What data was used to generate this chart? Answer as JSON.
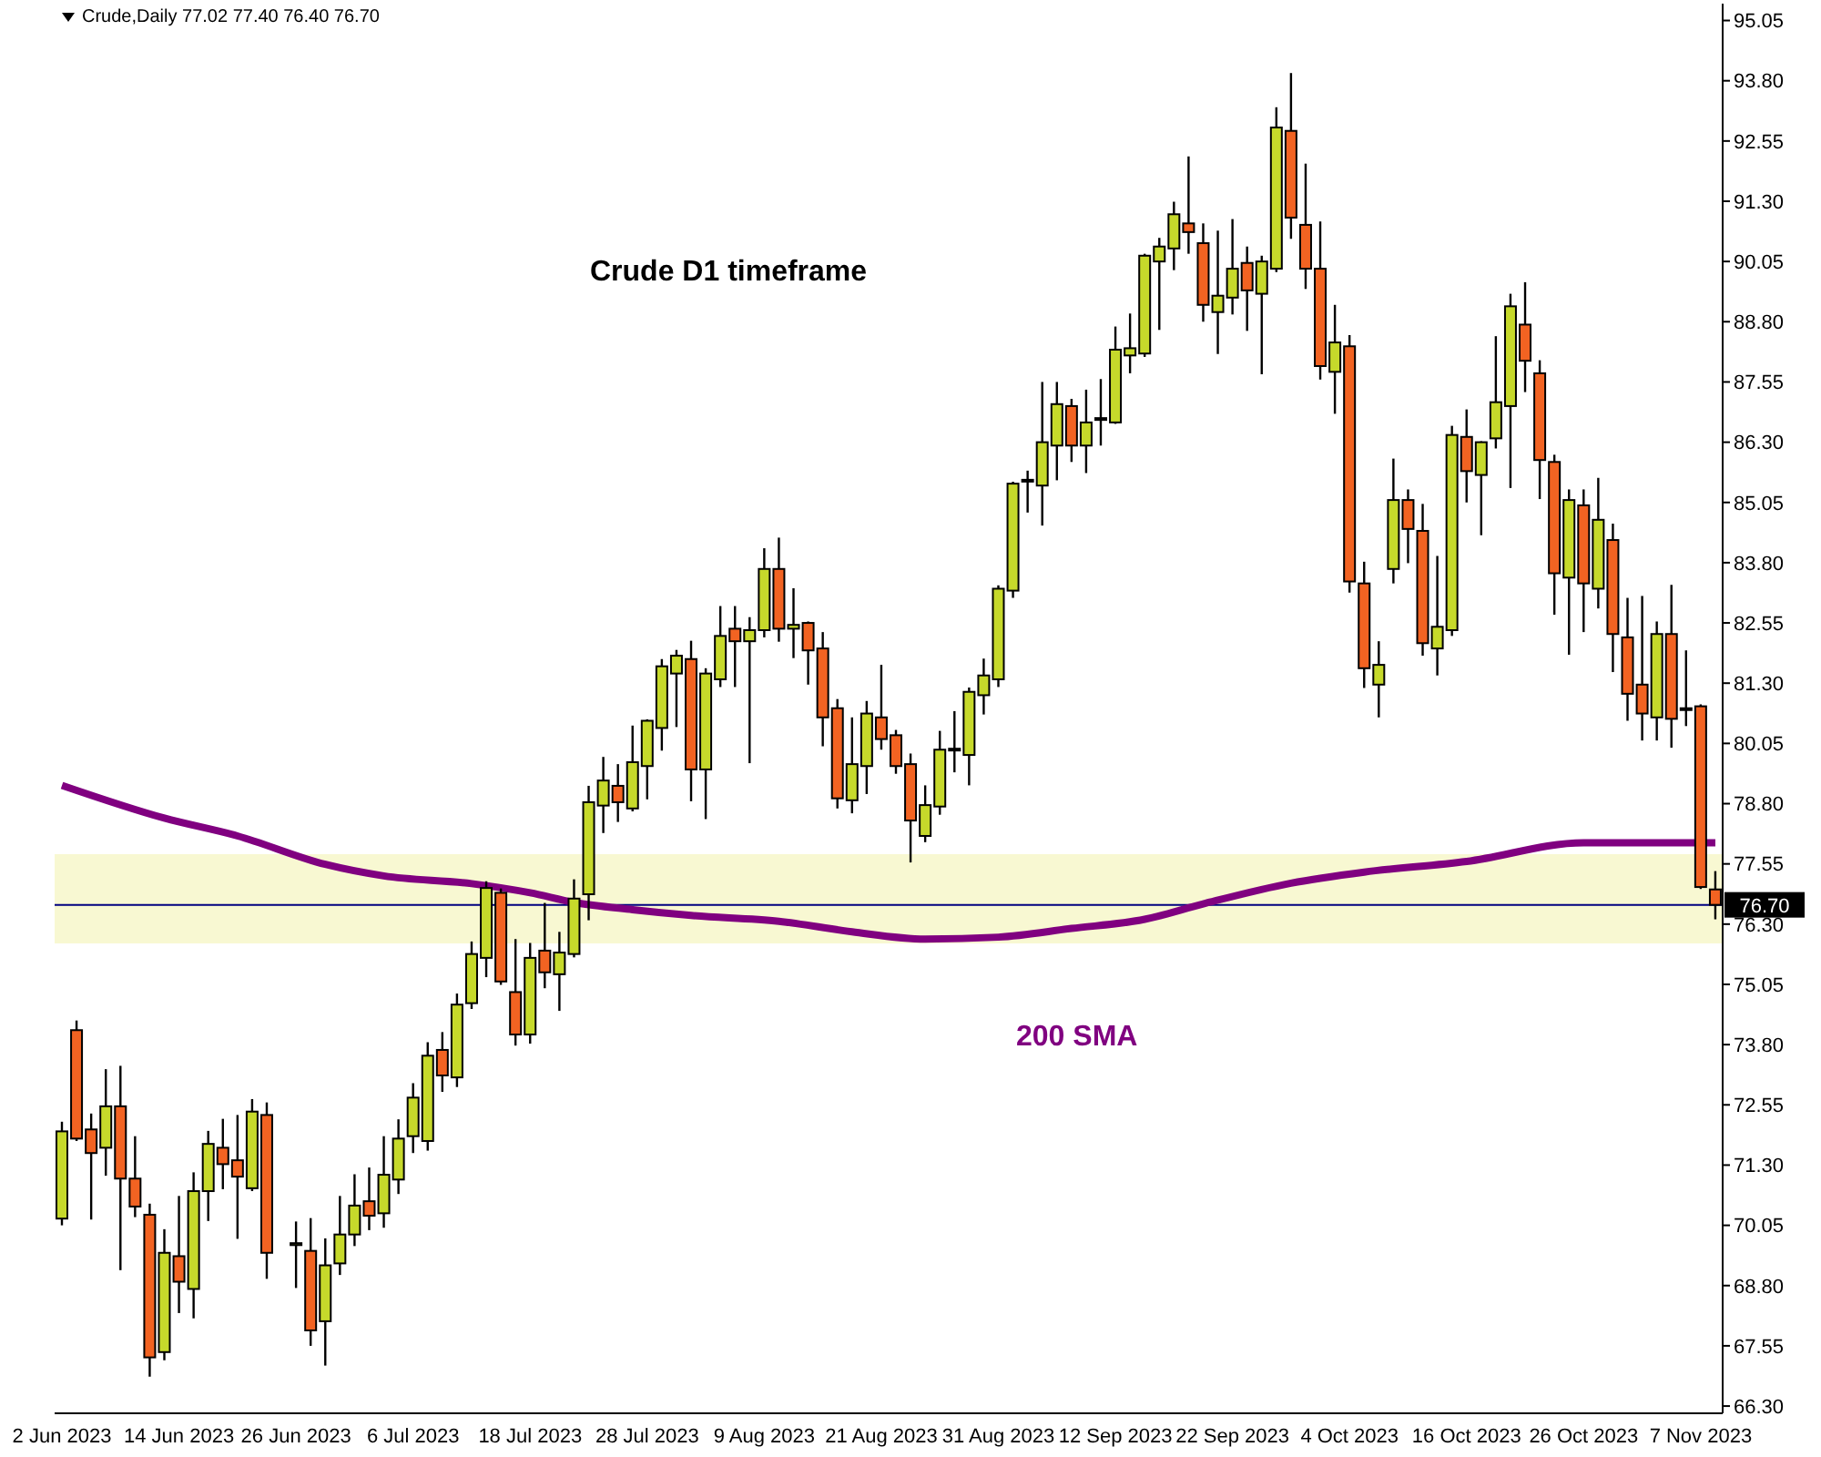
{
  "chart_data": {
    "type": "candlestick",
    "title": "Crude D1 timeframe",
    "annotations": [
      "Crude,Daily 77.02 77.40 76.40 76.70"
    ],
    "categories": [
      "2 Jun 2023",
      null,
      null,
      null,
      null,
      null,
      null,
      null,
      "14 Jun 2023",
      null,
      null,
      null,
      null,
      null,
      null,
      null,
      "26 Jun 2023",
      null,
      null,
      null,
      null,
      null,
      null,
      null,
      "6 Jul 2023",
      null,
      null,
      null,
      null,
      null,
      null,
      null,
      "18 Jul 2023",
      null,
      null,
      null,
      null,
      null,
      null,
      null,
      "28 Jul 2023",
      null,
      null,
      null,
      null,
      null,
      null,
      null,
      "9 Aug 2023",
      null,
      null,
      null,
      null,
      null,
      null,
      null,
      "21 Aug 2023",
      null,
      null,
      null,
      null,
      null,
      null,
      null,
      "31 Aug 2023",
      null,
      null,
      null,
      null,
      null,
      null,
      null,
      "12 Sep 2023",
      null,
      null,
      null,
      null,
      null,
      null,
      null,
      "22 Sep 2023",
      null,
      null,
      null,
      null,
      null,
      null,
      null,
      "4 Oct 2023",
      null,
      null,
      null,
      null,
      null,
      null,
      null,
      "16 Oct 2023",
      null,
      null,
      null,
      null,
      null,
      null,
      null,
      "26 Oct 2023",
      null,
      null,
      null,
      null,
      null,
      null,
      null,
      "7 Nov 2023",
      null
    ],
    "ohlc": [
      [
        70.19,
        72.2,
        70.05,
        72.0
      ],
      [
        74.1,
        74.3,
        71.8,
        71.85
      ],
      [
        72.04,
        72.37,
        70.17,
        71.55
      ],
      [
        71.66,
        73.29,
        71.08,
        72.52
      ],
      [
        72.52,
        73.36,
        69.12,
        71.02
      ],
      [
        71.02,
        71.9,
        70.22,
        70.44
      ],
      [
        70.27,
        70.5,
        66.91,
        67.31
      ],
      [
        67.42,
        69.97,
        67.25,
        69.48
      ],
      [
        69.41,
        70.66,
        68.23,
        68.88
      ],
      [
        68.73,
        71.15,
        68.12,
        70.76
      ],
      [
        70.76,
        72.01,
        70.14,
        71.74
      ],
      [
        71.66,
        72.26,
        70.8,
        71.32
      ],
      [
        71.4,
        72.34,
        69.77,
        71.06
      ],
      [
        70.82,
        72.67,
        70.76,
        72.41
      ],
      [
        72.34,
        72.6,
        68.94,
        69.48
      ],
      null,
      [
        69.64,
        70.13,
        68.75,
        69.68
      ],
      [
        69.52,
        70.2,
        67.55,
        67.87
      ],
      [
        68.06,
        69.78,
        67.14,
        69.22
      ],
      [
        69.26,
        70.66,
        69.02,
        69.86
      ],
      [
        69.86,
        71.11,
        69.62,
        70.46
      ],
      [
        70.55,
        71.25,
        69.95,
        70.25
      ],
      [
        70.3,
        71.9,
        70.0,
        71.1
      ],
      [
        71.0,
        72.25,
        70.7,
        71.85
      ],
      [
        71.9,
        73.0,
        71.55,
        72.7
      ],
      [
        71.8,
        73.85,
        71.6,
        73.57
      ],
      [
        73.69,
        74.06,
        72.82,
        73.16
      ],
      [
        73.12,
        74.86,
        72.92,
        74.63
      ],
      [
        74.66,
        75.94,
        74.54,
        75.68
      ],
      [
        75.6,
        77.19,
        75.2,
        77.05
      ],
      [
        76.95,
        77.04,
        75.04,
        75.11
      ],
      [
        74.89,
        75.99,
        73.78,
        74.01
      ],
      [
        74.01,
        75.91,
        73.82,
        75.6
      ],
      [
        75.75,
        76.74,
        74.97,
        75.3
      ],
      [
        75.26,
        76.14,
        74.5,
        75.71
      ],
      [
        75.68,
        77.23,
        75.61,
        76.83
      ],
      [
        76.92,
        79.17,
        76.38,
        78.83
      ],
      [
        78.76,
        79.77,
        78.19,
        79.28
      ],
      [
        79.17,
        79.62,
        78.42,
        78.83
      ],
      [
        78.7,
        80.42,
        78.64,
        79.66
      ],
      [
        79.58,
        80.55,
        78.89,
        80.52
      ],
      [
        80.37,
        81.8,
        79.9,
        81.65
      ],
      [
        81.5,
        81.99,
        80.39,
        81.87
      ],
      [
        81.8,
        82.18,
        78.85,
        79.51
      ],
      [
        79.51,
        81.61,
        78.48,
        81.5
      ],
      [
        81.38,
        82.9,
        81.22,
        82.28
      ],
      [
        82.43,
        82.9,
        81.22,
        82.17
      ],
      [
        82.17,
        82.67,
        79.64,
        82.4
      ],
      [
        82.4,
        84.1,
        82.25,
        83.67
      ],
      [
        83.67,
        84.32,
        82.16,
        82.43
      ],
      [
        82.43,
        83.27,
        81.82,
        82.51
      ],
      [
        82.55,
        82.58,
        81.27,
        81.98
      ],
      [
        82.02,
        82.36,
        79.99,
        80.59
      ],
      [
        80.78,
        80.97,
        78.7,
        78.91
      ],
      [
        78.87,
        80.59,
        78.6,
        79.62
      ],
      [
        79.58,
        80.93,
        79.0,
        80.67
      ],
      [
        80.59,
        81.68,
        79.92,
        80.14
      ],
      [
        80.22,
        80.33,
        79.42,
        79.58
      ],
      [
        79.62,
        79.84,
        77.58,
        78.45
      ],
      [
        78.13,
        79.18,
        78.0,
        78.77
      ],
      [
        78.74,
        80.31,
        78.57,
        79.92
      ],
      [
        79.92,
        80.72,
        79.45,
        79.94
      ],
      [
        79.81,
        81.21,
        79.18,
        81.12
      ],
      [
        81.05,
        81.81,
        80.65,
        81.46
      ],
      [
        81.38,
        83.33,
        81.22,
        83.26
      ],
      [
        83.22,
        85.48,
        83.07,
        85.44
      ],
      [
        85.5,
        85.71,
        84.84,
        85.52
      ],
      [
        85.4,
        87.55,
        84.57,
        86.3
      ],
      [
        86.23,
        87.55,
        85.51,
        87.09
      ],
      [
        87.05,
        87.2,
        85.89,
        86.23
      ],
      [
        86.23,
        87.39,
        85.66,
        86.71
      ],
      [
        86.78,
        87.61,
        86.23,
        86.8
      ],
      [
        86.71,
        88.7,
        86.68,
        88.22
      ],
      [
        88.1,
        88.97,
        87.73,
        88.25
      ],
      [
        88.14,
        90.21,
        88.07,
        90.17
      ],
      [
        90.05,
        90.54,
        88.63,
        90.36
      ],
      [
        90.32,
        91.29,
        89.87,
        91.03
      ],
      [
        90.84,
        92.23,
        90.21,
        90.66
      ],
      [
        90.43,
        90.84,
        88.8,
        89.15
      ],
      [
        89.0,
        90.69,
        88.13,
        89.34
      ],
      [
        89.3,
        90.93,
        88.95,
        89.9
      ],
      [
        90.02,
        90.36,
        88.61,
        89.45
      ],
      [
        89.38,
        90.17,
        87.71,
        90.05
      ],
      [
        89.9,
        93.25,
        89.83,
        92.83
      ],
      [
        92.76,
        93.96,
        90.52,
        90.96
      ],
      [
        90.81,
        92.08,
        89.48,
        89.9
      ],
      [
        89.9,
        90.88,
        87.6,
        87.88
      ],
      [
        87.76,
        89.15,
        86.89,
        88.37
      ],
      [
        88.29,
        88.52,
        83.18,
        83.41
      ],
      [
        83.37,
        83.82,
        81.2,
        81.61
      ],
      [
        81.27,
        82.17,
        80.59,
        81.68
      ],
      [
        83.67,
        85.96,
        83.37,
        85.1
      ],
      [
        85.1,
        85.32,
        83.79,
        84.5
      ],
      [
        84.46,
        85.02,
        81.87,
        82.13
      ],
      [
        82.02,
        83.94,
        81.46,
        82.47
      ],
      [
        82.4,
        86.64,
        82.28,
        86.45
      ],
      [
        86.41,
        86.98,
        85.05,
        85.7
      ],
      [
        85.62,
        86.32,
        84.37,
        86.3
      ],
      [
        86.38,
        88.5,
        86.17,
        87.13
      ],
      [
        87.05,
        89.38,
        85.35,
        89.12
      ],
      [
        88.74,
        89.62,
        87.34,
        87.99
      ],
      [
        87.73,
        88.0,
        85.12,
        85.93
      ],
      [
        85.89,
        86.04,
        82.72,
        83.58
      ],
      [
        83.49,
        85.32,
        81.89,
        85.1
      ],
      [
        84.99,
        85.32,
        82.36,
        83.37
      ],
      [
        83.26,
        85.56,
        82.85,
        84.69
      ],
      [
        84.27,
        84.61,
        81.53,
        82.32
      ],
      [
        82.25,
        83.07,
        80.52,
        81.08
      ],
      [
        81.27,
        83.11,
        80.11,
        80.67
      ],
      [
        80.59,
        82.58,
        80.11,
        82.32
      ],
      [
        82.32,
        83.34,
        79.96,
        80.56
      ],
      [
        80.76,
        81.98,
        80.41,
        80.78
      ],
      [
        80.82,
        80.86,
        77.03,
        77.07
      ],
      [
        77.02,
        77.4,
        76.4,
        76.7
      ]
    ],
    "colors": [
      "#c6d92b",
      "#f26322",
      "#f26322",
      "#c6d92b",
      "#f26322",
      "#f26322",
      "#f26322",
      "#c6d92b",
      "#f26322",
      "#c6d92b",
      "#c6d92b",
      "#f26322",
      "#f26322",
      "#c6d92b",
      "#f26322",
      null,
      "#c6d92b",
      "#f26322",
      "#c6d92b",
      "#c6d92b",
      "#c6d92b",
      "#f26322",
      "#c6d92b",
      "#c6d92b",
      "#c6d92b",
      "#c6d92b",
      "#f26322",
      "#c6d92b",
      "#c6d92b",
      "#c6d92b",
      "#f26322",
      "#f26322",
      "#c6d92b",
      "#f26322",
      "#c6d92b",
      "#c6d92b",
      "#c6d92b",
      "#c6d92b",
      "#f26322",
      "#c6d92b",
      "#c6d92b",
      "#c6d92b",
      "#c6d92b",
      "#f26322",
      "#c6d92b",
      "#c6d92b",
      "#f26322",
      "#c6d92b",
      "#c6d92b",
      "#f26322",
      "#c6d92b",
      "#f26322",
      "#f26322",
      "#f26322",
      "#c6d92b",
      "#c6d92b",
      "#f26322",
      "#f26322",
      "#f26322",
      "#c6d92b",
      "#c6d92b",
      "#c6d92b",
      "#c6d92b",
      "#c6d92b",
      "#c6d92b",
      "#c6d92b",
      "#c6d92b",
      "#c6d92b",
      "#c6d92b",
      "#f26322",
      "#c6d92b",
      "#c6d92b",
      "#c6d92b",
      "#c6d92b",
      "#c6d92b",
      "#c6d92b",
      "#c6d92b",
      "#f26322",
      "#f26322",
      "#c6d92b",
      "#c6d92b",
      "#f26322",
      "#c6d92b",
      "#c6d92b",
      "#f26322",
      "#f26322",
      "#f26322",
      "#c6d92b",
      "#f26322",
      "#f26322",
      "#c6d92b",
      "#c6d92b",
      "#f26322",
      "#f26322",
      "#c6d92b",
      "#c6d92b",
      "#f26322",
      "#c6d92b",
      "#c6d92b",
      "#c6d92b",
      "#f26322",
      "#f26322",
      "#f26322",
      "#c6d92b",
      "#f26322",
      "#c6d92b",
      "#f26322",
      "#f26322",
      "#f26322",
      "#c6d92b",
      "#f26322",
      "#c6d92b",
      "#f26322",
      "#f26322"
    ],
    "series": [
      {
        "type": "line",
        "name": "200 SMA",
        "color": "#800080",
        "values": [
          79.18,
          null,
          null,
          null,
          null,
          null,
          null,
          78.5,
          null,
          null,
          null,
          null,
          78.13,
          null,
          null,
          null,
          null,
          null,
          77.54,
          null,
          null,
          null,
          77.3,
          null,
          null,
          null,
          null,
          null,
          77.14,
          null,
          null,
          null,
          76.95,
          null,
          null,
          76.75,
          null,
          null,
          null,
          76.6,
          null,
          null,
          null,
          76.48,
          null,
          null,
          null,
          null,
          null,
          76.36,
          null,
          null,
          null,
          null,
          76.14,
          null,
          null,
          null,
          null,
          75.99,
          null,
          null,
          null,
          null,
          76.03,
          null,
          null,
          null,
          null,
          76.21,
          null,
          null,
          null,
          null,
          76.4,
          null,
          null,
          null,
          76.72,
          null,
          null,
          null,
          null,
          null,
          77.15,
          null,
          null,
          null,
          null,
          77.38,
          null,
          null,
          null,
          null,
          null,
          null,
          77.6,
          null,
          null,
          null,
          null,
          null,
          null,
          null,
          77.99,
          null,
          null,
          null,
          null,
          null,
          null,
          null,
          null,
          77.99
        ]
      }
    ],
    "ylim": [
      66.15,
      95.4
    ],
    "yticks": [
      {
        "value": 66.3,
        "label": "66.30"
      },
      67.55,
      {
        "value": 68.8,
        "label": "68.80"
      },
      70.05,
      {
        "value": 71.3,
        "label": "71.30"
      },
      72.55,
      {
        "value": 73.8,
        "label": "73.80"
      },
      75.05,
      {
        "value": 76.3,
        "label": "76.30"
      },
      77.55,
      {
        "value": 78.8,
        "label": "78.80"
      },
      80.05,
      {
        "value": 81.3,
        "label": "81.30"
      },
      82.55,
      {
        "value": 83.8,
        "label": "83.80"
      },
      85.05,
      {
        "value": 86.3,
        "label": "86.30"
      },
      87.55,
      {
        "value": 88.8,
        "label": "88.80"
      },
      90.05,
      {
        "value": 91.3,
        "label": "91.30"
      },
      92.55,
      {
        "value": 93.8,
        "label": "93.80"
      },
      95.05
    ],
    "ref_lines": [
      {
        "axis": "y",
        "value": 76.7,
        "label": "76.70",
        "color": "#000080"
      }
    ],
    "bands": [
      {
        "axis": "y",
        "from": 75.9,
        "to": 77.75,
        "color": "#f8f8d2"
      }
    ]
  }
}
